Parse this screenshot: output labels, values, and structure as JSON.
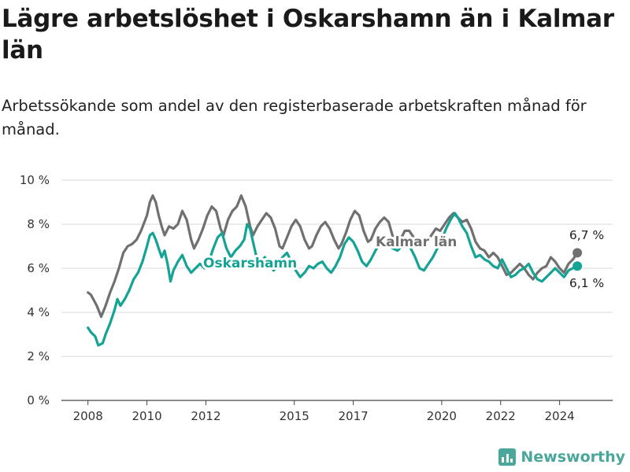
{
  "title": "Lägre arbetslöshet i Oskarshamn än i Kalmar län",
  "subtitle": "Arbetssökande som andel av den registerbaserade arbetskraften månad för månad.",
  "brand": "Newsworthy",
  "colors": {
    "kalmar": "#707070",
    "oskarshamn": "#14a394",
    "grid": "#d9d9d9"
  },
  "chart_data": {
    "type": "line",
    "title": "Lägre arbetslöshet i Oskarshamn än i Kalmar län",
    "subtitle": "Arbetssökande som andel av den registerbaserade arbetskraften månad för månad.",
    "xlabel": "",
    "ylabel": "",
    "x_ticks": [
      "2008",
      "2010",
      "2012",
      "2015",
      "2017",
      "2020",
      "2022",
      "2024"
    ],
    "x_tick_positions": [
      2008,
      2010,
      2012,
      2015,
      2017,
      2020,
      2022,
      2024
    ],
    "y_ticks": [
      "0 %",
      "2 %",
      "4 %",
      "6 %",
      "8 %",
      "10 %"
    ],
    "ylim": [
      0,
      10
    ],
    "xlim": [
      2007.1,
      2025.8
    ],
    "grid": true,
    "legend": "inline labels",
    "series": [
      {
        "name": "Kalmar län",
        "color": "#707070",
        "end_label": "6,7 %",
        "points": [
          [
            2008.0,
            4.9
          ],
          [
            2008.1,
            4.8
          ],
          [
            2008.3,
            4.3
          ],
          [
            2008.45,
            3.8
          ],
          [
            2008.6,
            4.3
          ],
          [
            2008.75,
            4.9
          ],
          [
            2008.9,
            5.4
          ],
          [
            2009.05,
            6.0
          ],
          [
            2009.2,
            6.7
          ],
          [
            2009.35,
            7.0
          ],
          [
            2009.5,
            7.1
          ],
          [
            2009.65,
            7.3
          ],
          [
            2009.8,
            7.7
          ],
          [
            2010.0,
            8.4
          ],
          [
            2010.1,
            9.0
          ],
          [
            2010.2,
            9.3
          ],
          [
            2010.3,
            9.0
          ],
          [
            2010.4,
            8.4
          ],
          [
            2010.5,
            7.9
          ],
          [
            2010.6,
            7.5
          ],
          [
            2010.75,
            7.9
          ],
          [
            2010.9,
            7.8
          ],
          [
            2011.05,
            8.0
          ],
          [
            2011.2,
            8.6
          ],
          [
            2011.35,
            8.2
          ],
          [
            2011.5,
            7.3
          ],
          [
            2011.6,
            6.9
          ],
          [
            2011.75,
            7.3
          ],
          [
            2011.9,
            7.8
          ],
          [
            2012.05,
            8.4
          ],
          [
            2012.2,
            8.8
          ],
          [
            2012.35,
            8.6
          ],
          [
            2012.5,
            7.8
          ],
          [
            2012.6,
            7.5
          ],
          [
            2012.75,
            8.2
          ],
          [
            2012.9,
            8.6
          ],
          [
            2013.05,
            8.8
          ],
          [
            2013.2,
            9.3
          ],
          [
            2013.35,
            8.8
          ],
          [
            2013.5,
            7.9
          ],
          [
            2013.6,
            7.5
          ],
          [
            2013.75,
            7.9
          ],
          [
            2013.9,
            8.2
          ],
          [
            2014.05,
            8.5
          ],
          [
            2014.2,
            8.3
          ],
          [
            2014.35,
            7.8
          ],
          [
            2014.5,
            7.0
          ],
          [
            2014.6,
            6.9
          ],
          [
            2014.75,
            7.4
          ],
          [
            2014.9,
            7.9
          ],
          [
            2015.05,
            8.2
          ],
          [
            2015.2,
            7.9
          ],
          [
            2015.35,
            7.3
          ],
          [
            2015.5,
            6.9
          ],
          [
            2015.6,
            7.0
          ],
          [
            2015.75,
            7.5
          ],
          [
            2015.9,
            7.9
          ],
          [
            2016.05,
            8.1
          ],
          [
            2016.2,
            7.8
          ],
          [
            2016.35,
            7.3
          ],
          [
            2016.5,
            6.9
          ],
          [
            2016.6,
            7.1
          ],
          [
            2016.75,
            7.6
          ],
          [
            2016.9,
            8.2
          ],
          [
            2017.05,
            8.6
          ],
          [
            2017.2,
            8.4
          ],
          [
            2017.35,
            7.7
          ],
          [
            2017.5,
            7.2
          ],
          [
            2017.6,
            7.3
          ],
          [
            2017.75,
            7.8
          ],
          [
            2017.9,
            8.1
          ],
          [
            2018.05,
            8.3
          ],
          [
            2018.2,
            8.1
          ],
          [
            2018.35,
            7.4
          ],
          [
            2018.5,
            7.1
          ],
          [
            2018.6,
            7.3
          ],
          [
            2018.75,
            7.7
          ],
          [
            2018.9,
            7.7
          ],
          [
            2019.05,
            7.4
          ],
          [
            2019.2,
            7.1
          ],
          [
            2019.35,
            7.0
          ],
          [
            2019.5,
            7.2
          ],
          [
            2019.65,
            7.5
          ],
          [
            2019.8,
            7.8
          ],
          [
            2019.95,
            7.7
          ],
          [
            2020.1,
            8.0
          ],
          [
            2020.25,
            8.3
          ],
          [
            2020.4,
            8.5
          ],
          [
            2020.55,
            8.3
          ],
          [
            2020.7,
            8.1
          ],
          [
            2020.85,
            8.2
          ],
          [
            2021.0,
            7.8
          ],
          [
            2021.15,
            7.2
          ],
          [
            2021.3,
            6.9
          ],
          [
            2021.45,
            6.8
          ],
          [
            2021.6,
            6.5
          ],
          [
            2021.75,
            6.7
          ],
          [
            2021.9,
            6.5
          ],
          [
            2022.05,
            6.1
          ],
          [
            2022.2,
            5.7
          ],
          [
            2022.35,
            5.8
          ],
          [
            2022.5,
            6.0
          ],
          [
            2022.65,
            6.2
          ],
          [
            2022.8,
            6.0
          ],
          [
            2022.95,
            5.7
          ],
          [
            2023.1,
            5.5
          ],
          [
            2023.25,
            5.8
          ],
          [
            2023.4,
            6.0
          ],
          [
            2023.55,
            6.1
          ],
          [
            2023.7,
            6.5
          ],
          [
            2023.85,
            6.3
          ],
          [
            2024.0,
            6.0
          ],
          [
            2024.15,
            5.8
          ],
          [
            2024.3,
            6.2
          ],
          [
            2024.45,
            6.4
          ],
          [
            2024.6,
            6.7
          ]
        ]
      },
      {
        "name": "Oskarshamn",
        "color": "#14a394",
        "end_label": "6,1 %",
        "points": [
          [
            2008.0,
            3.3
          ],
          [
            2008.1,
            3.1
          ],
          [
            2008.25,
            2.9
          ],
          [
            2008.35,
            2.5
          ],
          [
            2008.5,
            2.6
          ],
          [
            2008.6,
            3.0
          ],
          [
            2008.75,
            3.5
          ],
          [
            2008.9,
            4.1
          ],
          [
            2009.0,
            4.6
          ],
          [
            2009.1,
            4.3
          ],
          [
            2009.25,
            4.6
          ],
          [
            2009.4,
            5.0
          ],
          [
            2009.55,
            5.5
          ],
          [
            2009.7,
            5.8
          ],
          [
            2009.85,
            6.3
          ],
          [
            2010.0,
            7.0
          ],
          [
            2010.1,
            7.5
          ],
          [
            2010.2,
            7.6
          ],
          [
            2010.3,
            7.3
          ],
          [
            2010.4,
            6.9
          ],
          [
            2010.5,
            6.5
          ],
          [
            2010.6,
            6.8
          ],
          [
            2010.7,
            6.2
          ],
          [
            2010.8,
            5.4
          ],
          [
            2010.9,
            5.9
          ],
          [
            2011.05,
            6.3
          ],
          [
            2011.2,
            6.6
          ],
          [
            2011.35,
            6.1
          ],
          [
            2011.5,
            5.8
          ],
          [
            2011.65,
            6.0
          ],
          [
            2011.8,
            6.2
          ],
          [
            2011.95,
            6.0
          ],
          [
            2012.1,
            6.3
          ],
          [
            2012.25,
            6.9
          ],
          [
            2012.4,
            7.4
          ],
          [
            2012.55,
            7.6
          ],
          [
            2012.7,
            6.9
          ],
          [
            2012.85,
            6.5
          ],
          [
            2013.0,
            6.8
          ],
          [
            2013.15,
            7.0
          ],
          [
            2013.3,
            7.3
          ],
          [
            2013.4,
            8.0
          ],
          [
            2013.5,
            7.8
          ],
          [
            2013.6,
            7.2
          ],
          [
            2013.7,
            6.6
          ],
          [
            2013.85,
            6.3
          ],
          [
            2014.0,
            6.5
          ],
          [
            2014.15,
            6.2
          ],
          [
            2014.3,
            5.9
          ],
          [
            2014.45,
            6.1
          ],
          [
            2014.6,
            6.5
          ],
          [
            2014.75,
            6.7
          ],
          [
            2014.9,
            6.3
          ],
          [
            2015.05,
            5.9
          ],
          [
            2015.2,
            5.6
          ],
          [
            2015.35,
            5.8
          ],
          [
            2015.5,
            6.1
          ],
          [
            2015.65,
            6.0
          ],
          [
            2015.8,
            6.2
          ],
          [
            2015.95,
            6.3
          ],
          [
            2016.1,
            6.0
          ],
          [
            2016.25,
            5.8
          ],
          [
            2016.4,
            6.1
          ],
          [
            2016.55,
            6.5
          ],
          [
            2016.7,
            7.1
          ],
          [
            2016.85,
            7.4
          ],
          [
            2017.0,
            7.2
          ],
          [
            2017.15,
            6.8
          ],
          [
            2017.3,
            6.3
          ],
          [
            2017.45,
            6.1
          ],
          [
            2017.6,
            6.4
          ],
          [
            2017.75,
            6.8
          ],
          [
            2017.9,
            7.1
          ],
          [
            2018.05,
            7.2
          ],
          [
            2018.2,
            7.0
          ],
          [
            2018.35,
            6.9
          ],
          [
            2018.5,
            6.8
          ],
          [
            2018.65,
            7.0
          ],
          [
            2018.8,
            7.1
          ],
          [
            2018.95,
            6.9
          ],
          [
            2019.1,
            6.5
          ],
          [
            2019.25,
            6.0
          ],
          [
            2019.4,
            5.9
          ],
          [
            2019.55,
            6.2
          ],
          [
            2019.7,
            6.5
          ],
          [
            2019.85,
            6.9
          ],
          [
            2020.0,
            7.3
          ],
          [
            2020.15,
            7.8
          ],
          [
            2020.3,
            8.2
          ],
          [
            2020.45,
            8.5
          ],
          [
            2020.55,
            8.3
          ],
          [
            2020.7,
            7.9
          ],
          [
            2020.85,
            7.6
          ],
          [
            2021.0,
            7.0
          ],
          [
            2021.15,
            6.5
          ],
          [
            2021.3,
            6.6
          ],
          [
            2021.45,
            6.4
          ],
          [
            2021.6,
            6.3
          ],
          [
            2021.75,
            6.1
          ],
          [
            2021.9,
            6.0
          ],
          [
            2022.05,
            6.4
          ],
          [
            2022.2,
            6.0
          ],
          [
            2022.35,
            5.6
          ],
          [
            2022.5,
            5.7
          ],
          [
            2022.65,
            5.9
          ],
          [
            2022.8,
            6.0
          ],
          [
            2022.95,
            6.2
          ],
          [
            2023.1,
            5.8
          ],
          [
            2023.25,
            5.5
          ],
          [
            2023.4,
            5.4
          ],
          [
            2023.55,
            5.6
          ],
          [
            2023.7,
            5.8
          ],
          [
            2023.85,
            6.0
          ],
          [
            2024.0,
            5.8
          ],
          [
            2024.15,
            5.6
          ],
          [
            2024.3,
            5.9
          ],
          [
            2024.45,
            6.0
          ],
          [
            2024.6,
            6.1
          ]
        ]
      }
    ]
  }
}
